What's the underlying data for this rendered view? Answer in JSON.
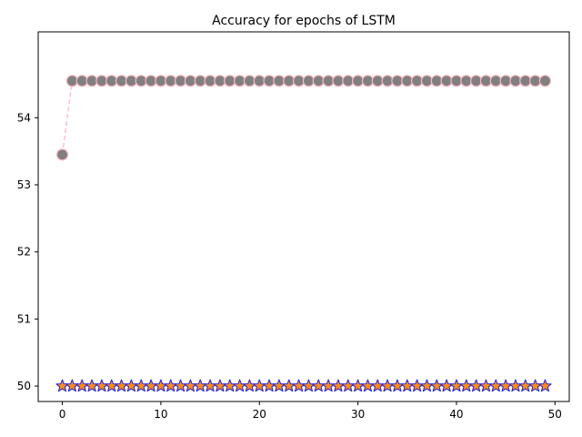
{
  "chart_data": {
    "type": "line",
    "title": "Accuracy for epochs of LSTM",
    "xlabel": "",
    "ylabel": "",
    "xlim": [
      -2.45,
      51.45
    ],
    "ylim": [
      49.77,
      55.28
    ],
    "grid": false,
    "x_ticks": [
      0,
      10,
      20,
      30,
      40,
      50
    ],
    "y_ticks": [
      50,
      51,
      52,
      53,
      54
    ],
    "x": [
      0,
      1,
      2,
      3,
      4,
      5,
      6,
      7,
      8,
      9,
      10,
      11,
      12,
      13,
      14,
      15,
      16,
      17,
      18,
      19,
      20,
      21,
      22,
      23,
      24,
      25,
      26,
      27,
      28,
      29,
      30,
      31,
      32,
      33,
      34,
      35,
      36,
      37,
      38,
      39,
      40,
      41,
      42,
      43,
      44,
      45,
      46,
      47,
      48,
      49
    ],
    "series": [
      {
        "values": [
          53.45,
          54.55,
          54.55,
          54.55,
          54.55,
          54.55,
          54.55,
          54.55,
          54.55,
          54.55,
          54.55,
          54.55,
          54.55,
          54.55,
          54.55,
          54.55,
          54.55,
          54.55,
          54.55,
          54.55,
          54.55,
          54.55,
          54.55,
          54.55,
          54.55,
          54.55,
          54.55,
          54.55,
          54.55,
          54.55,
          54.55,
          54.55,
          54.55,
          54.55,
          54.55,
          54.55,
          54.55,
          54.55,
          54.55,
          54.55,
          54.55,
          54.55,
          54.55,
          54.55,
          54.55,
          54.55,
          54.55,
          54.55,
          54.55,
          54.55
        ],
        "marker": "circle",
        "marker_color": "#808080",
        "marker_edge_color": "#ffb6c1",
        "line_color": "#ffc0cb",
        "line_style": "dashed"
      },
      {
        "values": [
          50,
          50,
          50,
          50,
          50,
          50,
          50,
          50,
          50,
          50,
          50,
          50,
          50,
          50,
          50,
          50,
          50,
          50,
          50,
          50,
          50,
          50,
          50,
          50,
          50,
          50,
          50,
          50,
          50,
          50,
          50,
          50,
          50,
          50,
          50,
          50,
          50,
          50,
          50,
          50,
          50,
          50,
          50,
          50,
          50,
          50,
          50,
          50,
          50,
          50
        ],
        "marker": "star",
        "marker_color": "#ff8c1a",
        "marker_edge_color": "#1f1fd6",
        "line_color": "#c7c0ff",
        "line_style": "dashed"
      }
    ]
  }
}
